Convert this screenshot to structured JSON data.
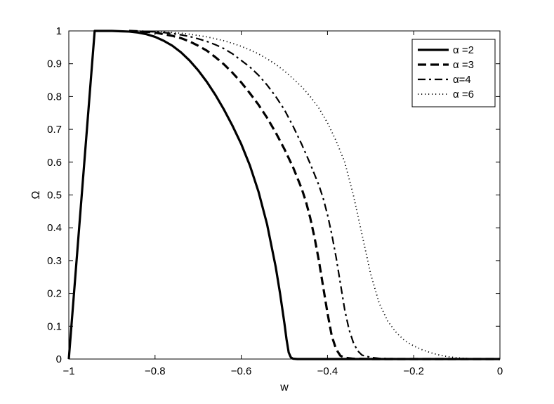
{
  "chart_data": {
    "type": "line",
    "title": "",
    "xlabel": "w",
    "ylabel": "Ω",
    "xlim": [
      -1,
      0
    ],
    "ylim": [
      0,
      1
    ],
    "grid": false,
    "legend_position": "top-right",
    "xticks": [
      -1,
      -0.8,
      -0.6,
      -0.4,
      -0.2,
      0
    ],
    "xtick_labels": [
      "−1",
      "−0.8",
      "−0.6",
      "−0.4",
      "−0.2",
      "0"
    ],
    "yticks": [
      0,
      0.1,
      0.2,
      0.3,
      0.4,
      0.5,
      0.6,
      0.7,
      0.8,
      0.9,
      1
    ],
    "ytick_labels": [
      "0",
      "0.1",
      "0.2",
      "0.3",
      "0.4",
      "0.5",
      "0.6",
      "0.7",
      "0.8",
      "0.9",
      "1"
    ],
    "series": [
      {
        "name": "α =2",
        "style": "solid",
        "color": "#000000",
        "x": [
          -1,
          -0.94,
          -0.9,
          -0.88,
          -0.86,
          -0.84,
          -0.82,
          -0.8,
          -0.78,
          -0.76,
          -0.74,
          -0.72,
          -0.7,
          -0.68,
          -0.66,
          -0.64,
          -0.62,
          -0.6,
          -0.58,
          -0.56,
          -0.54,
          -0.52,
          -0.51,
          -0.5,
          -0.495,
          -0.49,
          -0.485,
          -0.48,
          -0.47,
          -0.4,
          -0.2,
          0
        ],
        "y": [
          0,
          1,
          1,
          0.999,
          0.998,
          0.995,
          0.99,
          0.982,
          0.97,
          0.955,
          0.935,
          0.91,
          0.88,
          0.845,
          0.805,
          0.76,
          0.71,
          0.655,
          0.59,
          0.51,
          0.41,
          0.28,
          0.2,
          0.11,
          0.06,
          0.02,
          0.005,
          0.001,
          0,
          0,
          0,
          0
        ]
      },
      {
        "name": "α =3",
        "style": "dashed",
        "color": "#000000",
        "x": [
          -0.86,
          -0.84,
          -0.82,
          -0.8,
          -0.78,
          -0.76,
          -0.74,
          -0.72,
          -0.7,
          -0.68,
          -0.66,
          -0.64,
          -0.62,
          -0.6,
          -0.58,
          -0.56,
          -0.54,
          -0.52,
          -0.5,
          -0.48,
          -0.46,
          -0.45,
          -0.44,
          -0.43,
          -0.42,
          -0.41,
          -0.4,
          -0.39,
          -0.38,
          -0.37,
          -0.36,
          -0.34,
          -0.3,
          -0.2,
          0
        ],
        "y": [
          1,
          0.999,
          0.997,
          0.995,
          0.99,
          0.985,
          0.978,
          0.968,
          0.955,
          0.94,
          0.92,
          0.898,
          0.872,
          0.843,
          0.81,
          0.775,
          0.735,
          0.69,
          0.64,
          0.585,
          0.52,
          0.48,
          0.43,
          0.37,
          0.3,
          0.22,
          0.14,
          0.07,
          0.03,
          0.01,
          0.004,
          0.001,
          0,
          0,
          0
        ]
      },
      {
        "name": "α=4",
        "style": "dashdot",
        "color": "#000000",
        "x": [
          -0.86,
          -0.82,
          -0.8,
          -0.78,
          -0.76,
          -0.74,
          -0.72,
          -0.7,
          -0.68,
          -0.66,
          -0.64,
          -0.62,
          -0.6,
          -0.58,
          -0.56,
          -0.54,
          -0.52,
          -0.5,
          -0.48,
          -0.46,
          -0.44,
          -0.42,
          -0.41,
          -0.4,
          -0.39,
          -0.38,
          -0.37,
          -0.36,
          -0.35,
          -0.34,
          -0.33,
          -0.32,
          -0.3,
          -0.28,
          -0.25,
          -0.2,
          0
        ],
        "y": [
          1,
          0.998,
          0.997,
          0.995,
          0.992,
          0.988,
          0.983,
          0.976,
          0.968,
          0.958,
          0.946,
          0.93,
          0.91,
          0.89,
          0.865,
          0.835,
          0.8,
          0.76,
          0.71,
          0.655,
          0.595,
          0.53,
          0.49,
          0.44,
          0.38,
          0.31,
          0.23,
          0.15,
          0.09,
          0.05,
          0.025,
          0.012,
          0.005,
          0.002,
          0.001,
          0,
          0
        ]
      },
      {
        "name": "α =6",
        "style": "dotted",
        "color": "#000000",
        "x": [
          -0.86,
          -0.82,
          -0.8,
          -0.78,
          -0.76,
          -0.74,
          -0.72,
          -0.7,
          -0.68,
          -0.66,
          -0.64,
          -0.62,
          -0.6,
          -0.58,
          -0.56,
          -0.54,
          -0.52,
          -0.5,
          -0.48,
          -0.46,
          -0.44,
          -0.42,
          -0.4,
          -0.38,
          -0.36,
          -0.34,
          -0.32,
          -0.3,
          -0.28,
          -0.26,
          -0.24,
          -0.22,
          -0.2,
          -0.18,
          -0.16,
          -0.14,
          -0.12,
          -0.1,
          -0.08,
          -0.06,
          0
        ],
        "y": [
          1,
          0.999,
          0.998,
          0.997,
          0.995,
          0.993,
          0.99,
          0.986,
          0.982,
          0.976,
          0.97,
          0.962,
          0.953,
          0.942,
          0.93,
          0.915,
          0.898,
          0.878,
          0.855,
          0.83,
          0.8,
          0.765,
          0.72,
          0.665,
          0.6,
          0.5,
          0.38,
          0.26,
          0.17,
          0.115,
          0.08,
          0.055,
          0.04,
          0.028,
          0.019,
          0.012,
          0.007,
          0.004,
          0.002,
          0.001,
          0
        ]
      }
    ]
  }
}
